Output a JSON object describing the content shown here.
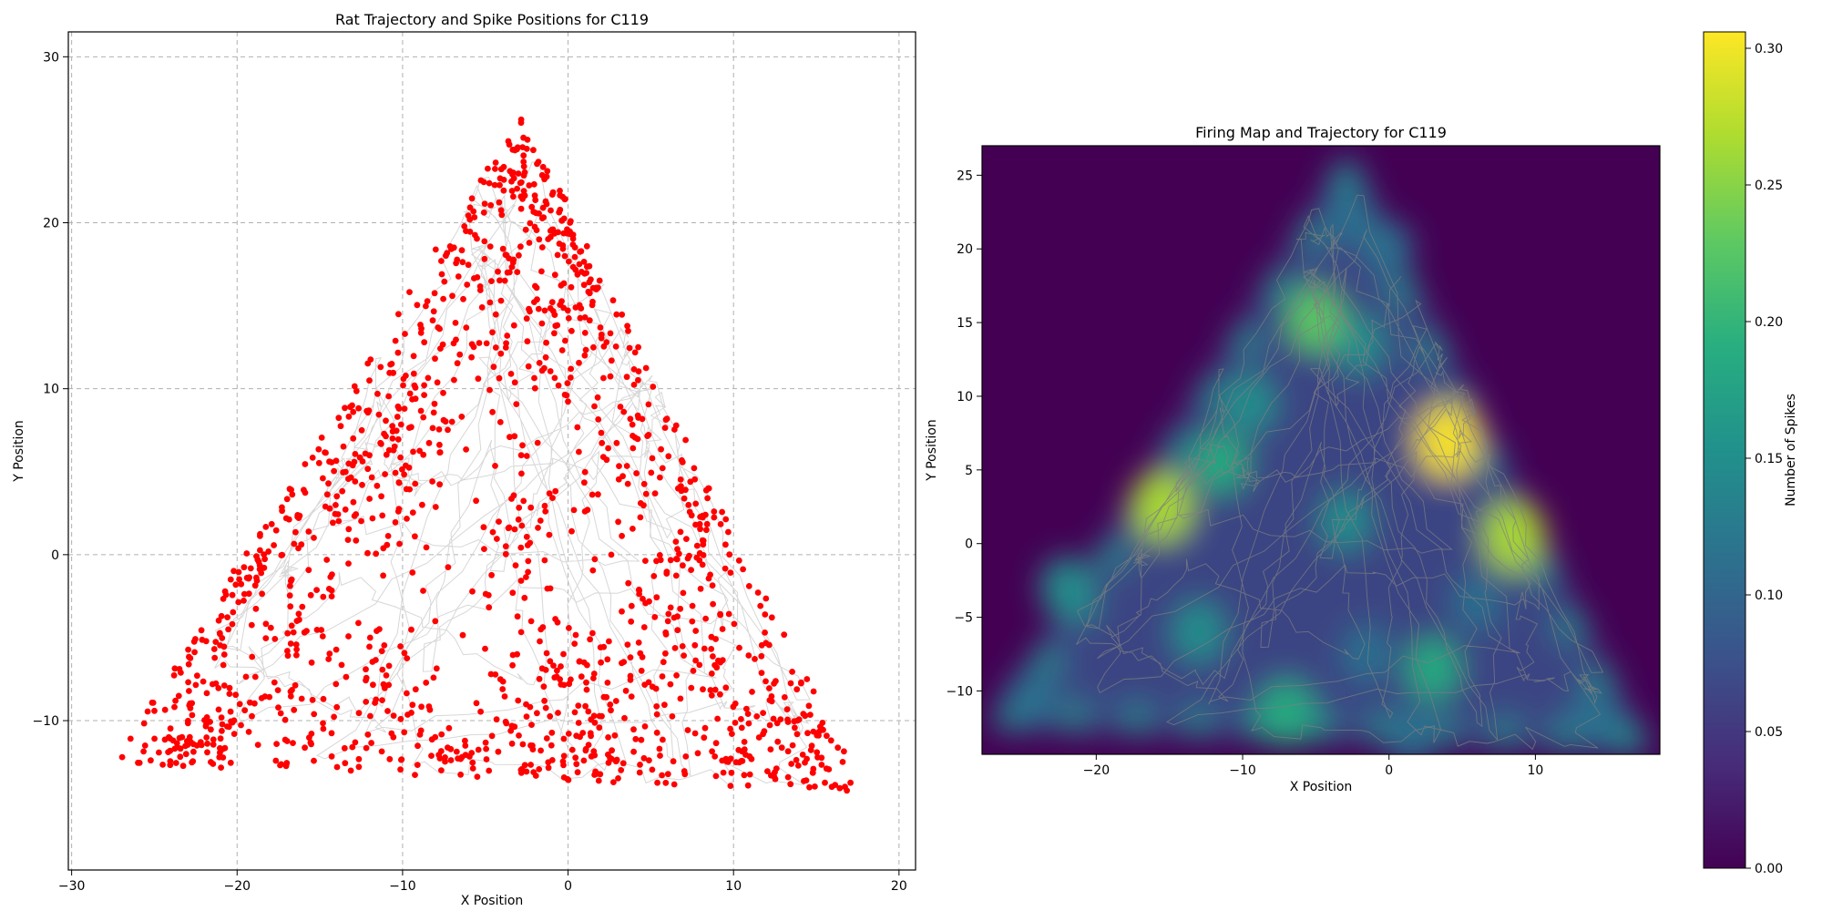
{
  "chart_data": [
    {
      "type": "scatter",
      "title": "Rat Trajectory and Spike Positions for  C119",
      "xlabel": "X Position",
      "ylabel": "Y Position",
      "xlim": [
        -30.2,
        21.0
      ],
      "ylim": [
        -19.0,
        31.5
      ],
      "xticks": [
        -30,
        -20,
        -10,
        0,
        10,
        20
      ],
      "yticks": [
        -10,
        0,
        10,
        20,
        30
      ],
      "grid": true,
      "arena": {
        "vertices": [
          [
            -27.5,
            -12.6
          ],
          [
            -2.8,
            26.7
          ],
          [
            18.0,
            -14.3
          ]
        ]
      },
      "series": [
        {
          "role": "trajectory",
          "color": "#d3d3d3"
        },
        {
          "role": "spikes",
          "color": "#ff0000"
        }
      ]
    },
    {
      "type": "heatmap",
      "title": "Firing Map and Trajectory for  C119",
      "xlabel": "X Position",
      "ylabel": "Y Position",
      "xlim": [
        -27.8,
        18.5
      ],
      "ylim": [
        -14.3,
        27.0
      ],
      "xticks": [
        -20,
        -10,
        0,
        10
      ],
      "yticks": [
        -10,
        -5,
        0,
        5,
        10,
        15,
        20,
        25
      ],
      "colormap": "viridis",
      "trajectory_color": "#808080",
      "hotspots": [
        {
          "x": 4.0,
          "y": 7.0,
          "value": 0.3
        },
        {
          "x": 8.5,
          "y": 0.5,
          "value": 0.28
        },
        {
          "x": -15.5,
          "y": 2.5,
          "value": 0.27
        },
        {
          "x": -5.0,
          "y": 15.2,
          "value": 0.22
        },
        {
          "x": -7.0,
          "y": -11.5,
          "value": 0.21
        },
        {
          "x": -11.5,
          "y": 5.5,
          "value": 0.19
        },
        {
          "x": -9.5,
          "y": 9.5,
          "value": 0.15
        },
        {
          "x": -22.0,
          "y": -3.0,
          "value": 0.17
        },
        {
          "x": -13.0,
          "y": -6.0,
          "value": 0.16
        },
        {
          "x": 3.0,
          "y": -8.5,
          "value": 0.18
        },
        {
          "x": -3.0,
          "y": 1.5,
          "value": 0.14
        },
        {
          "x": -2.0,
          "y": 13.5,
          "value": 0.14
        },
        {
          "x": -1.5,
          "y": -7.5,
          "value": 0.13
        },
        {
          "x": 0.0,
          "y": 20.0,
          "value": 0.1
        },
        {
          "x": -2.5,
          "y": 22.5,
          "value": 0.1
        },
        {
          "x": -24.5,
          "y": -10.5,
          "value": 0.12
        },
        {
          "x": 14.0,
          "y": -12.0,
          "value": 0.12
        },
        {
          "x": 1.5,
          "y": -13.0,
          "value": 0.13
        },
        {
          "x": 6.0,
          "y": -4.0,
          "value": 0.11
        }
      ],
      "colorbar": {
        "label": "Number of Spikes",
        "range": [
          0.0,
          0.306
        ],
        "ticks": [
          "0.00",
          "0.05",
          "0.10",
          "0.15",
          "0.20",
          "0.25",
          "0.30"
        ]
      }
    }
  ]
}
